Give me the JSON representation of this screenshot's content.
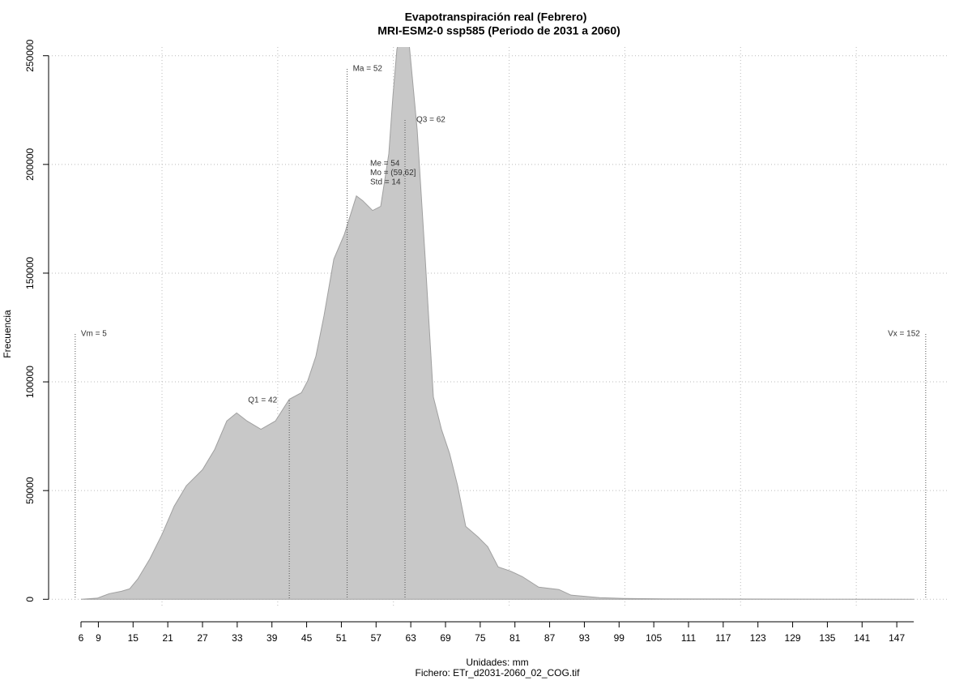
{
  "chart_data": {
    "type": "area",
    "title": "Evapotranspiración real (Febrero)",
    "subtitle": "MRI-ESM2-0 ssp585 (Periodo de 2031 a 2060)",
    "ylabel": "Frecuencia",
    "xlabel": "Unidades: mm",
    "caption": "Fichero: ETr_d2031-2060_02_COG.tif",
    "color": "#c8c8c8",
    "x": [
      6,
      8.8,
      10.9,
      13,
      14.4,
      15.8,
      17.9,
      20,
      22.1,
      24.2,
      27,
      29.1,
      31.2,
      32.9,
      34.7,
      37.1,
      39.6,
      42,
      44.1,
      45.2,
      46.6,
      48,
      49.7,
      51.5,
      53.6,
      54.7,
      56.4,
      57.8,
      59.2,
      59.9,
      60.6,
      61.5,
      62.7,
      64.1,
      65.5,
      66.9,
      68.3,
      69.7,
      71.1,
      72.5,
      74.6,
      76.3,
      78.1,
      80.2,
      82.3,
      85.1,
      88.6,
      90.7,
      95.6,
      99.8,
      106.8,
      150
    ],
    "values": [
      0,
      500,
      2600,
      3700,
      4800,
      9300,
      18600,
      29800,
      42800,
      52200,
      59600,
      68900,
      82000,
      85700,
      82000,
      78200,
      82000,
      92000,
      95000,
      100600,
      111800,
      130400,
      156500,
      167700,
      185500,
      183300,
      178800,
      180700,
      204900,
      231000,
      253000,
      262000,
      256000,
      216100,
      156500,
      93100,
      78200,
      67100,
      52200,
      33500,
      28700,
      24200,
      14900,
      13000,
      10400,
      5600,
      4500,
      1900,
      750,
      400,
      200,
      0
    ],
    "xlim": [
      0.4,
      155.8
    ],
    "ylim": [
      -4000,
      254000
    ],
    "xticks": [
      6,
      9,
      15,
      21,
      27,
      33,
      39,
      45,
      51,
      57,
      63,
      69,
      75,
      81,
      87,
      93,
      99,
      105,
      111,
      117,
      123,
      129,
      135,
      141,
      147
    ],
    "yticks": [
      0,
      50000,
      100000,
      150000,
      200000,
      250000
    ],
    "xgrid": [
      20,
      40,
      60,
      80,
      100,
      120,
      140
    ],
    "grid": true,
    "markers": [
      {
        "label": "Vm = 5",
        "x": 5
      },
      {
        "label": "Q1 = 42",
        "x": 42
      },
      {
        "label": "Ma = 52",
        "x": 52
      },
      {
        "label": "Q3 = 62",
        "x": 62
      },
      {
        "label": "Vx = 152",
        "x": 152
      }
    ],
    "annotations": [
      "Me = 54",
      "Mo = (59,62]",
      "Std = 14"
    ]
  }
}
